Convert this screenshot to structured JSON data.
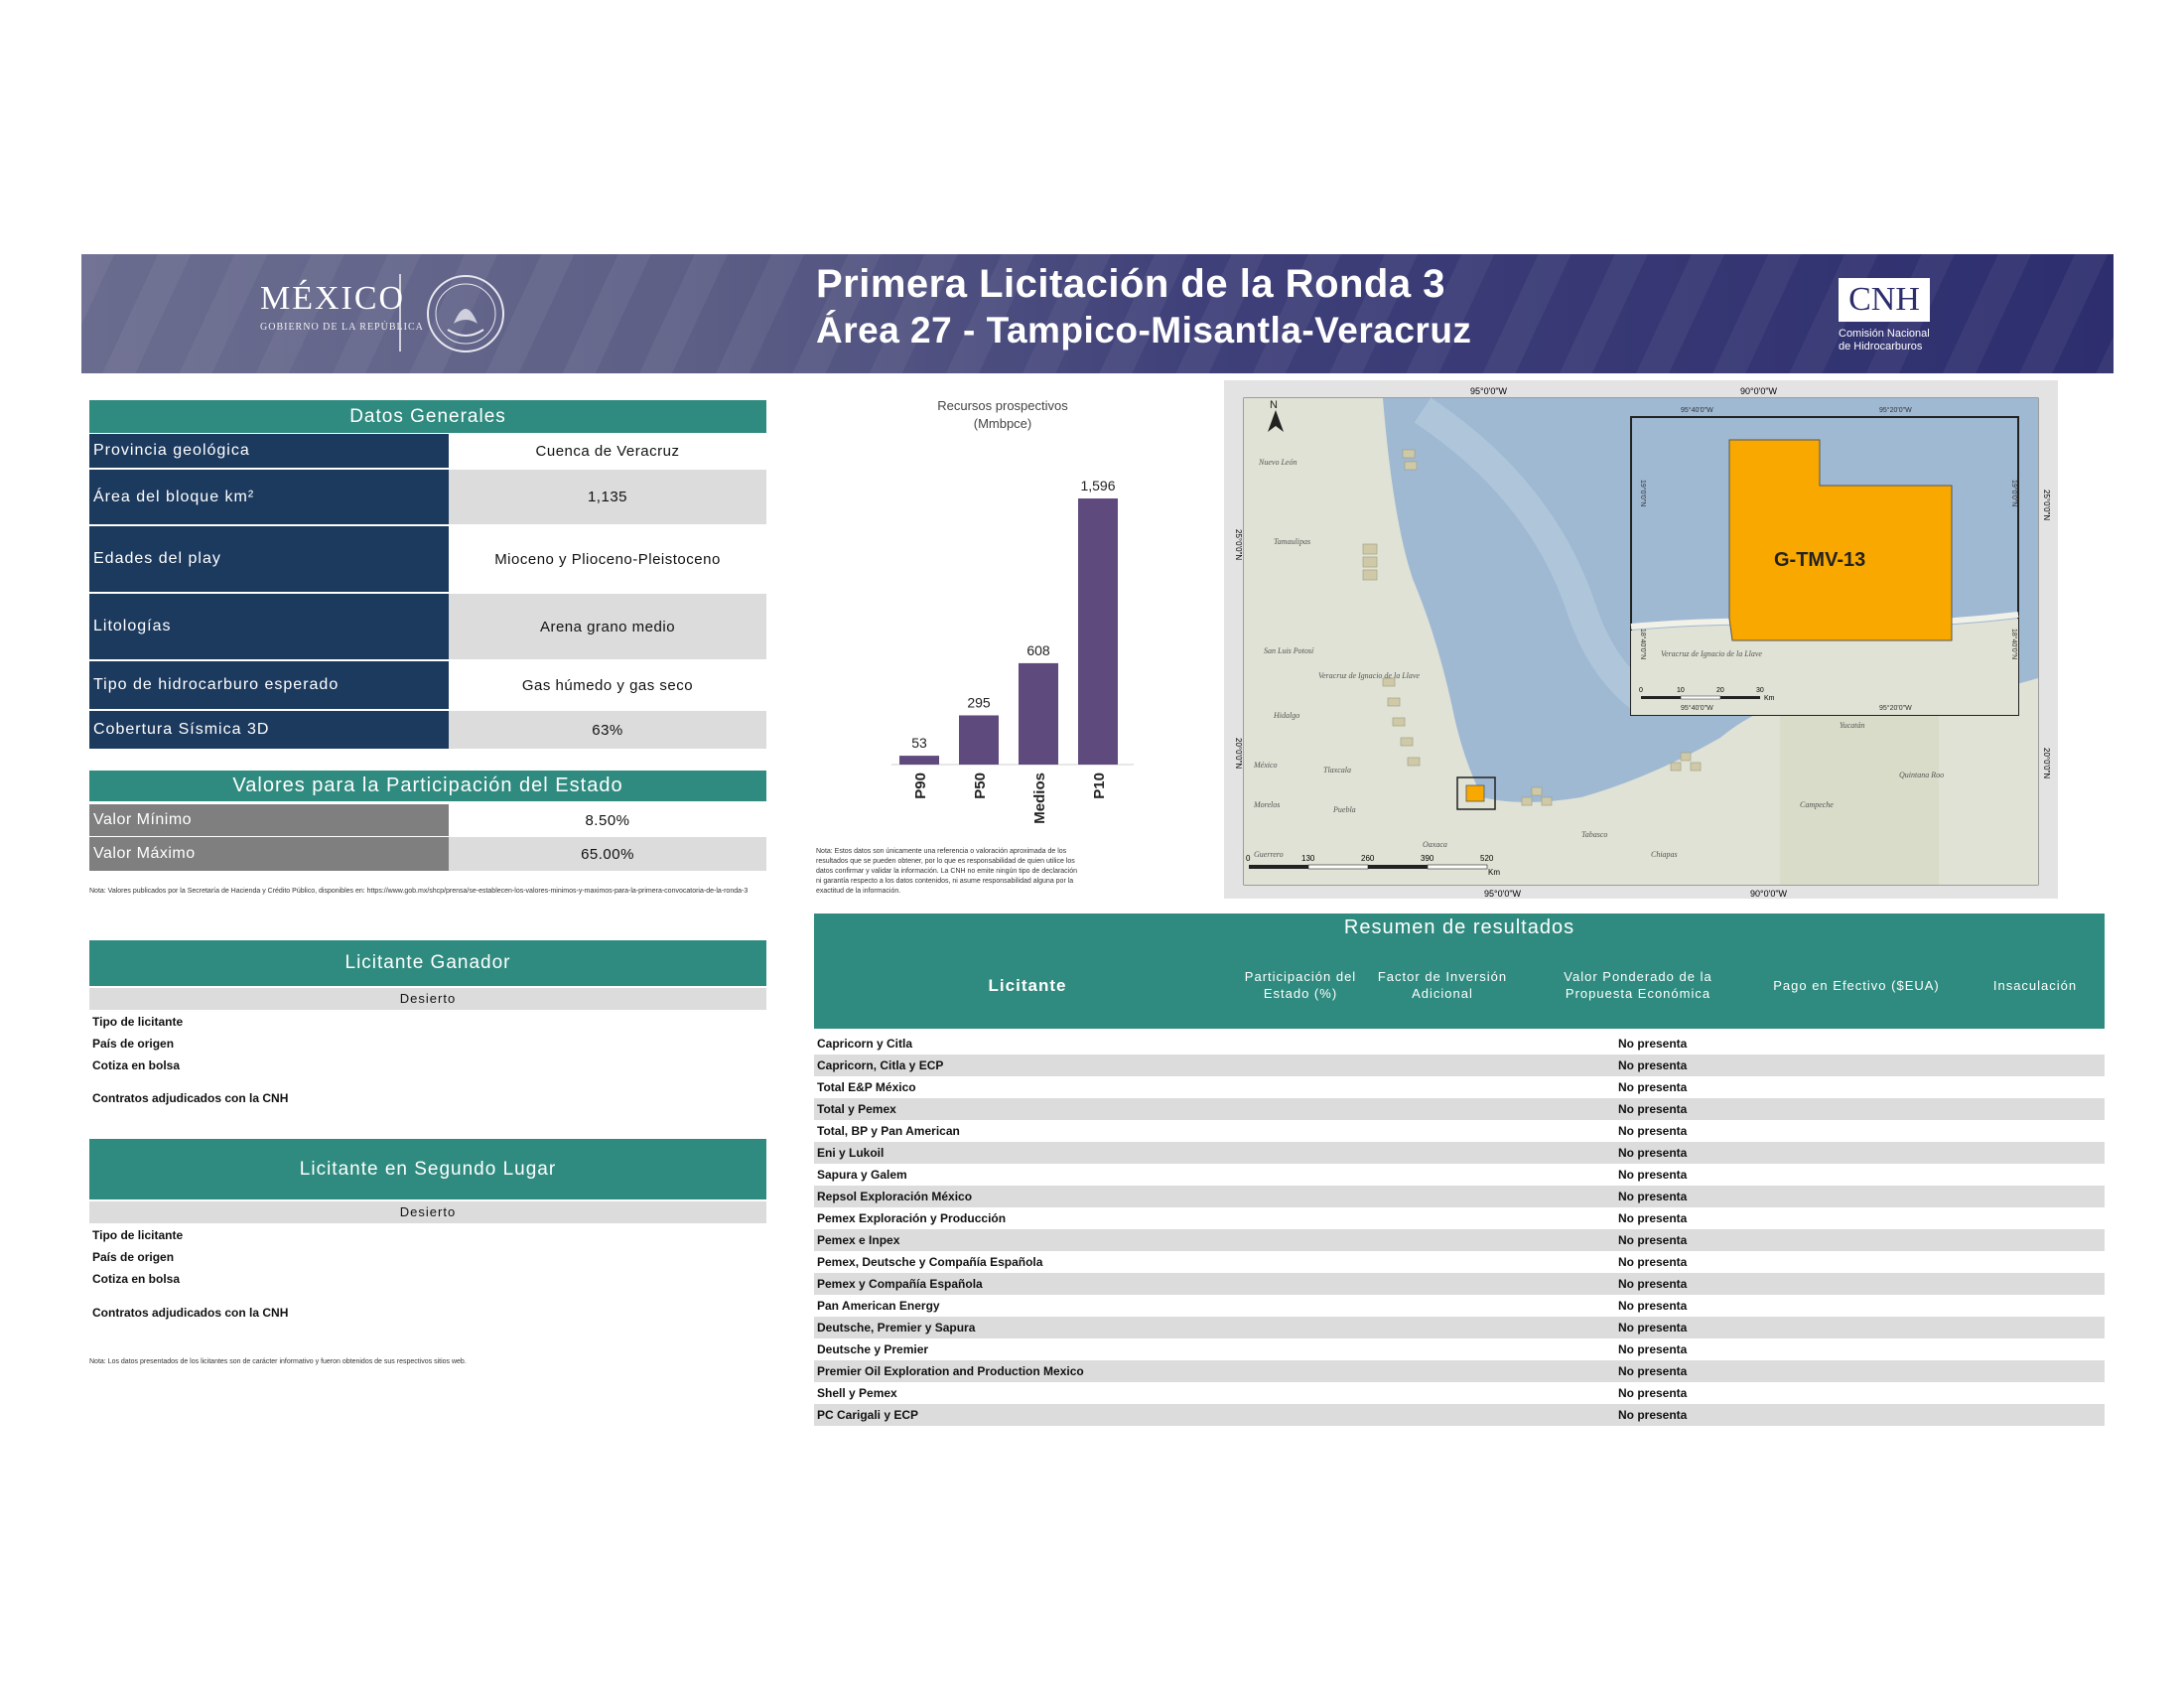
{
  "header": {
    "gov_logo": "MÉXICO",
    "gov_logo_sub": "GOBIERNO DE LA REPÚBLICA",
    "title_line1": "Primera Licitación de la Ronda 3",
    "title_line2": "Área 27 - Tampico-Misantla-Veracruz",
    "cnh_logo": "CNH",
    "cnh_sub1": "Comisión Nacional",
    "cnh_sub2": "de Hidrocarburos"
  },
  "datos_generales": {
    "title": "Datos Generales",
    "rows": [
      {
        "label": "Provincia geológica",
        "value": "Cuenca de Veracruz"
      },
      {
        "label": "Área del bloque km²",
        "value": "1,135"
      },
      {
        "label": "Edades del play",
        "value": "Mioceno y Plioceno-Pleistoceno"
      },
      {
        "label": "Litologías",
        "value": "Arena grano medio"
      },
      {
        "label": "Tipo de hidrocarburo esperado",
        "value": "Gas húmedo y gas seco"
      },
      {
        "label": "Cobertura Sísmica 3D",
        "value": "63%"
      }
    ]
  },
  "valores_estado": {
    "title": "Valores para la Participación del Estado",
    "rows": [
      {
        "label": "Valor Mínimo",
        "value": "8.50%"
      },
      {
        "label": "Valor Máximo",
        "value": "65.00%"
      }
    ],
    "note": "Nota: Valores publicados por la Secretaría de Hacienda y Crédito Público, disponibles en: https://www.gob.mx/shcp/prensa/se-establecen-los-valores-minimos-y-maximos-para-la-primera-convocatoria-de-la-ronda-3"
  },
  "licitante_ganador": {
    "title": "Licitante Ganador",
    "status": "Desierto",
    "fields": [
      "Tipo de licitante",
      "País de origen",
      "Cotiza en bolsa",
      "Contratos adjudicados con la CNH"
    ]
  },
  "licitante_segundo": {
    "title": "Licitante en Segundo Lugar",
    "status": "Desierto",
    "fields": [
      "Tipo de licitante",
      "País de origen",
      "Cotiza en bolsa",
      "Contratos adjudicados con la CNH"
    ],
    "note": "Nota: Los datos presentados de los licitantes son de carácter informativo y fueron obtenidos de sus respectivos sitios web."
  },
  "chart_data": {
    "type": "bar",
    "title": "Recursos prospectivos",
    "subtitle": "(Mmbpce)",
    "categories": [
      "P90",
      "P50",
      "Medios",
      "P10"
    ],
    "values": [
      53,
      295,
      608,
      1596
    ],
    "value_labels": [
      "53",
      "295",
      "608",
      "1,596"
    ],
    "ylim": [
      0,
      1596
    ],
    "bar_color": "#5e4a7d",
    "note": "Nota: Estos datos son únicamente una referencia o valoración aproximada de los resultados que se pueden obtener, por lo que es responsabilidad de quien utilice los datos confirmar y validar la información. La CNH no emite ningún tipo de declaración ni garantía respecto a los datos contenidos, ni asume responsabilidad alguna por la exactitud de la información."
  },
  "map": {
    "lon_top": [
      "95°0'0\"W",
      "90°0'0\"W"
    ],
    "lon_bottom": [
      "95°0'0\"W",
      "90°0'0\"W"
    ],
    "lat_left": [
      "25°0'0\"N",
      "20°0'0\"N"
    ],
    "lat_right": [
      "25°0'0\"N",
      "20°0'0\"N"
    ],
    "places": [
      "Nuevo León",
      "Tamaulipas",
      "San Luis Potosí",
      "Hidalgo",
      "México",
      "Morelos",
      "Guerrero",
      "Tlaxcala",
      "Puebla",
      "Oaxaca",
      "Veracruz de Ignacio de la Llave",
      "Tabasco",
      "Chiapas",
      "Campeche",
      "Yucatán",
      "Quintana Roo"
    ],
    "scale_labels": [
      "0",
      "130",
      "260",
      "390",
      "520"
    ],
    "scale_unit": "Km",
    "north": "N",
    "inset": {
      "block_label": "G-TMV-13",
      "lon_top": [
        "95°40'0\"W",
        "95°20'0\"W"
      ],
      "lon_bottom": [
        "95°40'0\"W",
        "95°20'0\"W"
      ],
      "lat_left": [
        "19°0'0\"N",
        "18°40'0\"N"
      ],
      "lat_right": [
        "19°0'0\"N",
        "18°40'0\"N"
      ],
      "place": "Veracruz de Ignacio de la Llave",
      "scale_labels": [
        "0",
        "10",
        "20",
        "30"
      ],
      "scale_unit": "Km",
      "block_color": "#f9a800"
    }
  },
  "resumen": {
    "title": "Resumen de resultados",
    "columns": [
      "Licitante",
      "Participación del Estado (%)",
      "Factor de Inversión Adicional",
      "Valor Ponderado de la Propuesta Económica",
      "Pago en Efectivo ($EUA)",
      "Insaculación"
    ],
    "rows": [
      {
        "name": "Capricorn y Citla",
        "value": "No presenta"
      },
      {
        "name": "Capricorn, Citla y ECP",
        "value": "No presenta"
      },
      {
        "name": "Total E&P México",
        "value": "No presenta"
      },
      {
        "name": "Total y Pemex",
        "value": "No presenta"
      },
      {
        "name": "Total, BP y Pan American",
        "value": "No presenta"
      },
      {
        "name": "Eni y Lukoil",
        "value": "No presenta"
      },
      {
        "name": "Sapura y Galem",
        "value": "No presenta"
      },
      {
        "name": "Repsol Exploración México",
        "value": "No presenta"
      },
      {
        "name": "Pemex Exploración y Producción",
        "value": "No presenta"
      },
      {
        "name": "Pemex e Inpex",
        "value": "No presenta"
      },
      {
        "name": "Pemex, Deutsche y Compañía Española",
        "value": "No presenta"
      },
      {
        "name": "Pemex y Compañía Española",
        "value": "No presenta"
      },
      {
        "name": "Pan American Energy",
        "value": "No presenta"
      },
      {
        "name": "Deutsche, Premier y Sapura",
        "value": "No presenta"
      },
      {
        "name": "Deutsche y Premier",
        "value": "No presenta"
      },
      {
        "name": "Premier Oil Exploration and Production Mexico",
        "value": "No presenta"
      },
      {
        "name": "Shell y Pemex",
        "value": "No presenta"
      },
      {
        "name": "PC Carigali y ECP",
        "value": "No presenta"
      }
    ]
  }
}
